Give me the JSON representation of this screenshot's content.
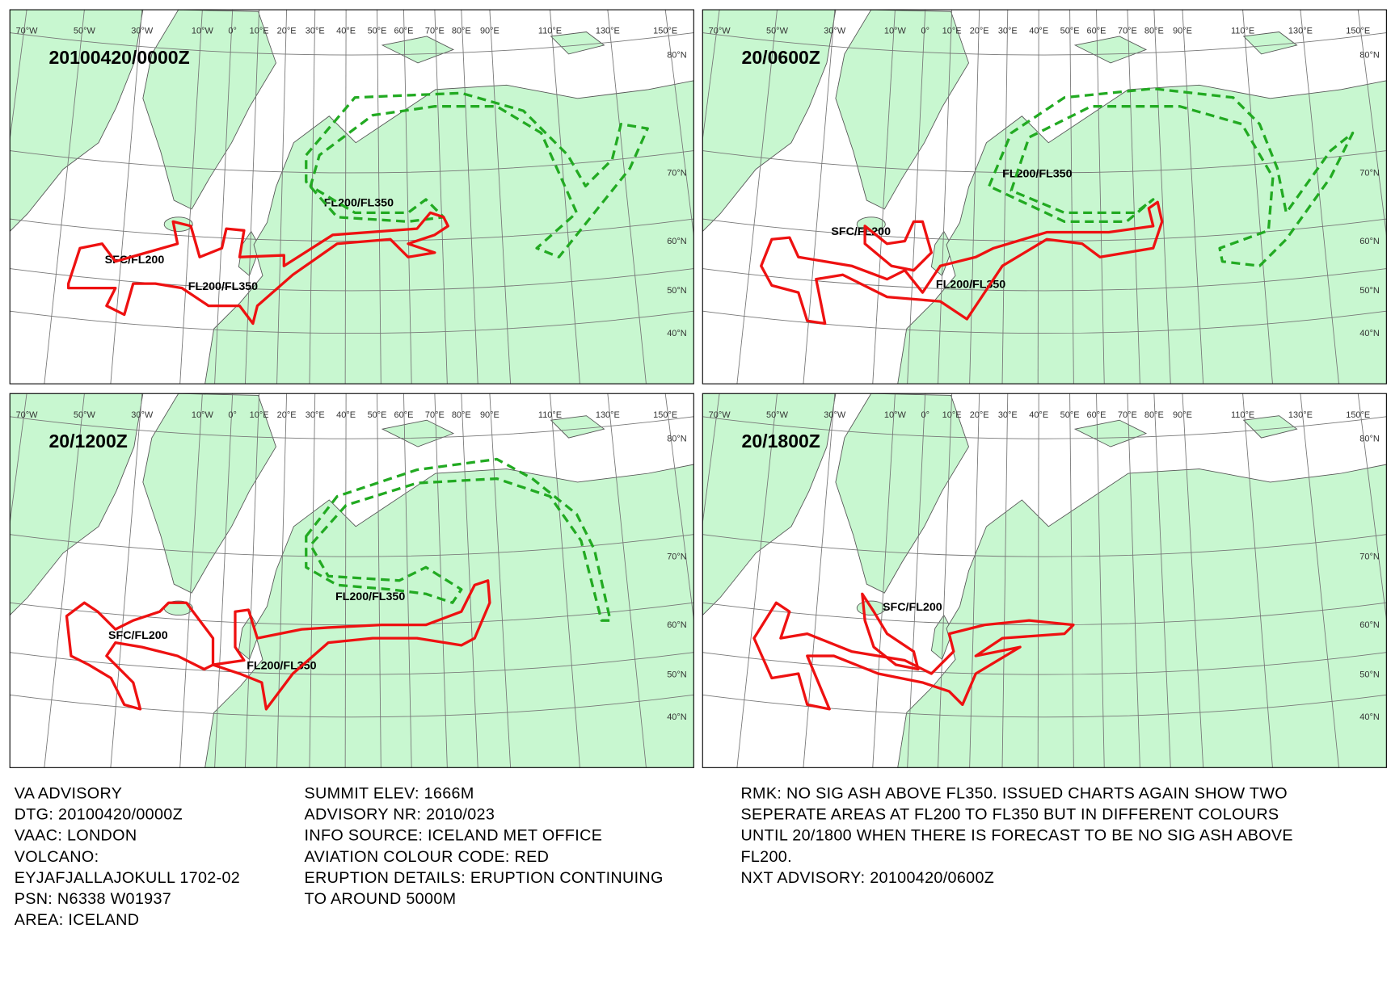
{
  "panels": [
    {
      "title": "20100420/0000Z",
      "labels": [
        "FL200/FL350",
        "SFC/FL200",
        "FL200/FL350"
      ]
    },
    {
      "title": "20/0600Z",
      "labels": [
        "FL200/FL350",
        "SFC/FL200",
        "FL200/FL350"
      ]
    },
    {
      "title": "20/1200Z",
      "labels": [
        "FL200/FL350",
        "SFC/FL200",
        "FL200/FL350"
      ]
    },
    {
      "title": "20/1800Z",
      "labels": [
        "SFC/FL200"
      ]
    }
  ],
  "grid": {
    "longitudes": [
      "70°W",
      "50°W",
      "30°W",
      "10°W",
      "0°",
      "10°E",
      "20°E",
      "30°E",
      "40°E",
      "50°E",
      "60°E",
      "70°E",
      "80°E",
      "90°E",
      "110°E",
      "130°E",
      "150°E"
    ],
    "latitudes": [
      "80°N",
      "70°N",
      "60°N",
      "50°N",
      "40°N"
    ]
  },
  "advisory": {
    "column_1": [
      "VA ADVISORY",
      "DTG:  20100420/0000Z",
      "VAAC:  LONDON",
      "VOLCANO:",
      "EYJAFJALLAJOKULL 1702-02",
      "PSN:  N6338 W01937",
      "AREA:  ICELAND"
    ],
    "column_2": [
      "SUMMIT ELEV:  1666M",
      "ADVISORY NR:  2010/023",
      "INFO SOURCE:  ICELAND MET OFFICE",
      "AVIATION COLOUR CODE:  RED",
      "ERUPTION DETAILS:  ERUPTION CONTINUING",
      "TO AROUND 5000M"
    ],
    "column_3": [
      "RMK:  NO SIG ASH ABOVE FL350. ISSUED CHARTS AGAIN SHOW TWO",
      "SEPERATE AREAS AT FL200 TO FL350 BUT IN DIFFERENT COLOURS",
      "UNTIL 20/1800 WHEN THERE IS FORECAST TO BE NO SIG ASH ABOVE",
      "FL200.",
      "NXT ADVISORY:  20100420/0600Z"
    ]
  }
}
